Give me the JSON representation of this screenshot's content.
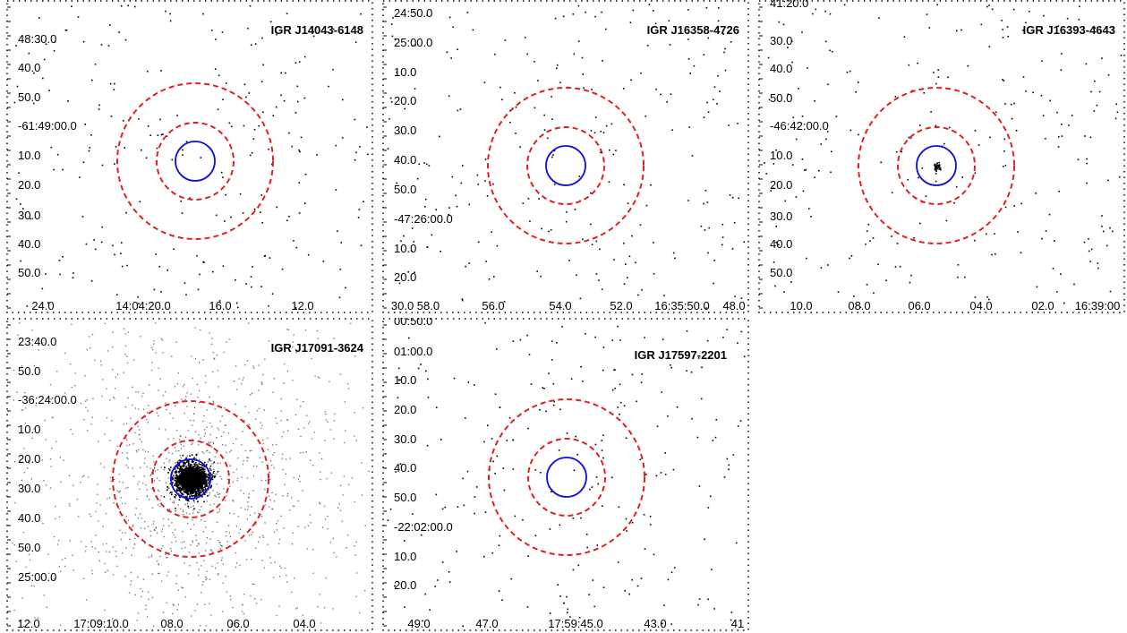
{
  "colors": {
    "source_region": "#1010e0",
    "background_region": "#e02020",
    "events": "#000000"
  },
  "panels": [
    {
      "title": "IGR J14043-6148",
      "y_ticks": [
        "48:30.0",
        "40.0",
        "50.0",
        "-61:49:00.0",
        "10.0",
        "20.0",
        "30.0",
        "40.0",
        "50.0"
      ],
      "x_ticks": [
        "24.0",
        "14:04:20.0",
        "16.0",
        "12.0"
      ],
      "event_density": "low",
      "central_concentration": false
    },
    {
      "title": "IGR J16358-4726",
      "y_ticks": [
        "24:50.0",
        "25:00.0",
        "10.0",
        "20.0",
        "30.0",
        "40.0",
        "50.0",
        "-47:26:00.0",
        "10.0",
        "20.0"
      ],
      "x_ticks": [
        "30.0 58.0",
        "56.0",
        "54.0",
        "52.0",
        "16:35:50.0",
        "48.0"
      ],
      "event_density": "low",
      "central_concentration": false
    },
    {
      "title": "IGR J16393-4643",
      "y_ticks": [
        "41:20.0",
        "30.0",
        "40.0",
        "50.0",
        "-46:42:00.0",
        "10.0",
        "20.0",
        "30.0",
        "40.0",
        "50.0"
      ],
      "x_ticks": [
        "10.0",
        "08.0",
        "06.0",
        "04.0",
        "02.0",
        "16:39:00"
      ],
      "event_density": "low",
      "central_concentration": true
    },
    {
      "title": "IGR J17091-3624",
      "y_ticks": [
        "23:40.0",
        "50.0",
        "-36:24:00.0",
        "10.0",
        "20.0",
        "30.0",
        "40.0",
        "50.0",
        "25:00.0"
      ],
      "x_ticks": [
        "12.0",
        "17:09:10.0",
        "08.0",
        "06.0",
        "04.0"
      ],
      "event_density": "high",
      "central_concentration": true
    },
    {
      "title": "IGR J17597-2201",
      "y_ticks": [
        "00:50.0",
        "01:00.0",
        "10.0",
        "20.0",
        "30.0",
        "40.0",
        "50.0",
        "-22:02:00.0",
        "10.0",
        "20.0"
      ],
      "x_ticks": [
        "49.0",
        "47.0",
        "17:59:45.0",
        "43.0",
        "41"
      ],
      "event_density": "low",
      "central_concentration": false
    }
  ]
}
